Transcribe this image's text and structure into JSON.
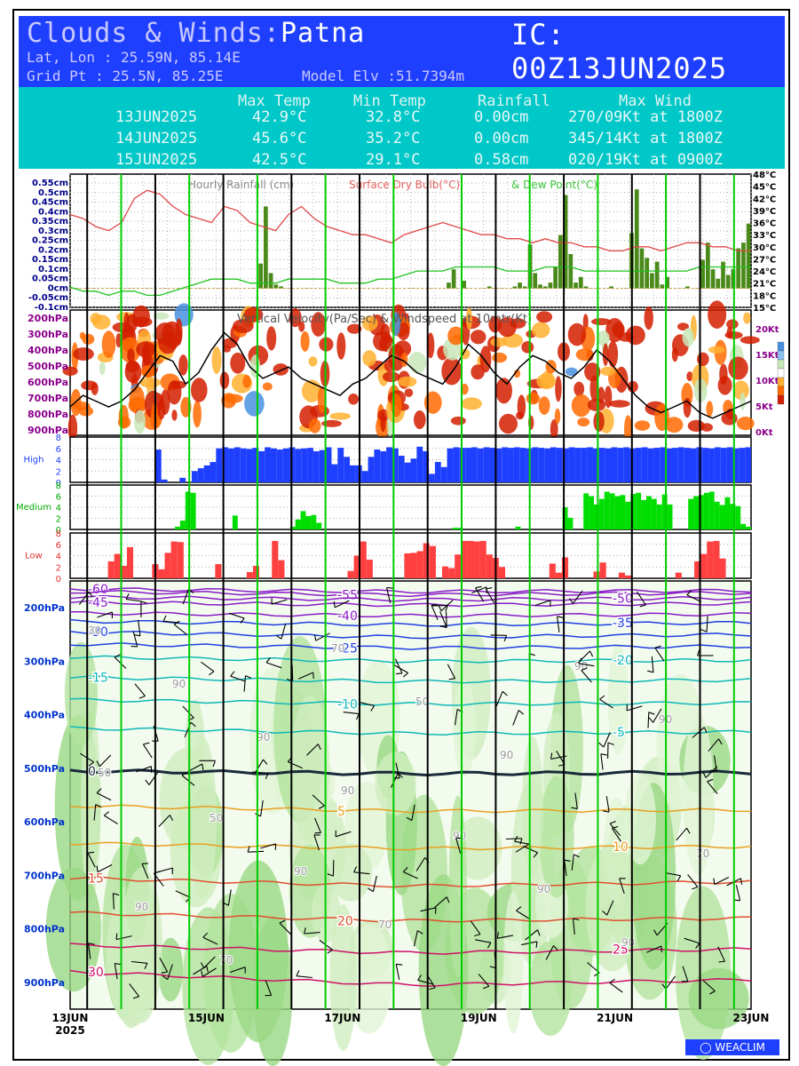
{
  "header": {
    "title_prefix": "Clouds & Winds:",
    "location": "Patna",
    "ic": "IC: 00Z13JUN2025",
    "latlon": "Lat, Lon : 25.59N, 85.14E",
    "grid": "Grid Pt  : 25.5N, 85.25E",
    "elev": "Model Elv :51.7394m"
  },
  "summary": {
    "columns": [
      "Max Temp",
      "Min Temp",
      "Rainfall",
      "Max Wind"
    ],
    "rows": [
      {
        "date": "13JUN2025",
        "max": "42.9°C",
        "min": "32.8°C",
        "rain": "0.00cm",
        "wind": "270/09Kt at 1800Z"
      },
      {
        "date": "14JUN2025",
        "max": "45.6°C",
        "min": "35.2°C",
        "rain": "0.00cm",
        "wind": "345/14Kt at 1800Z"
      },
      {
        "date": "15JUN2025",
        "max": "42.5°C",
        "min": "29.1°C",
        "rain": "0.58cm",
        "wind": "020/19Kt at 0900Z"
      }
    ]
  },
  "colors": {
    "header_blue": "#1f3fff",
    "header_cyan": "#00c8c8",
    "rain_bar": "#4a8a1a",
    "temp_line": "#e04848",
    "dew_line": "#22c422",
    "high": "#1f3fff",
    "medium": "#00dd00",
    "low": "#ff4040",
    "day_line": "#00cc00"
  },
  "chart_data": [
    {
      "type": "bar+line",
      "panel": "rain_temp",
      "legend": [
        "Hourly Rainfall (cm)",
        "Surface Dry Bulb(°C)",
        "& Dew Point(°C)"
      ],
      "left_ticks": [
        "0.55cm",
        "0.5cm",
        "0.45cm",
        "0.4cm",
        "0.35cm",
        "0.3cm",
        "0.25cm",
        "0.2cm",
        "0.15cm",
        "0.1cm",
        "0.05cm",
        "0cm",
        "-0.05cm",
        "-0.1cm"
      ],
      "right_ticks": [
        "48°C",
        "45°C",
        "42°C",
        "39°C",
        "36°C",
        "33°C",
        "30°C",
        "27°C",
        "24°C",
        "21°C",
        "18°C",
        "15°C"
      ],
      "ylim_rain": [
        -0.1,
        0.6
      ],
      "ylim_temp": [
        15,
        48
      ],
      "x_hours_step": 3,
      "rain": [
        0,
        0,
        0,
        0,
        0,
        0,
        0,
        0,
        0,
        0,
        0,
        0,
        0,
        0,
        0,
        0,
        0,
        0,
        0,
        0,
        0,
        0,
        0,
        0,
        0,
        0,
        0,
        0,
        0,
        0,
        0,
        0,
        0,
        0,
        0,
        0,
        0,
        0.13,
        0.43,
        0.08,
        0.02,
        0.01,
        0,
        0,
        0,
        0,
        0,
        0,
        0,
        0,
        0,
        0,
        0,
        0,
        0,
        0,
        0,
        0,
        0,
        0,
        0,
        0,
        0,
        0,
        0,
        0,
        0,
        0,
        0,
        0,
        0,
        0,
        0,
        0,
        0.03,
        0.1,
        0,
        0.04,
        0,
        0,
        0,
        0,
        0.01,
        0,
        0,
        0,
        0,
        0.01,
        0.03,
        0.01,
        0.23,
        0.08,
        0.02,
        0.01,
        0.03,
        0.11,
        0.28,
        0.49,
        0.18,
        0.03,
        0.06,
        0.01,
        0,
        0,
        0,
        0,
        0.01,
        0,
        0,
        0,
        0.29,
        0.52,
        0.21,
        0.16,
        0.08,
        0.14,
        0.02,
        0.06,
        0,
        0,
        0,
        0.01,
        0,
        0,
        0.15,
        0.24,
        0.1,
        0.05,
        0.14,
        0.07,
        0.1,
        0.21,
        0.24,
        0.34
      ],
      "temp": [
        38,
        37,
        35,
        34,
        36,
        42,
        44,
        43,
        40,
        38,
        37,
        36,
        40,
        39,
        36,
        35,
        34,
        38,
        40,
        37,
        35,
        34,
        33,
        33,
        32,
        31,
        33,
        34,
        35,
        36,
        35,
        34,
        33,
        33,
        32,
        32,
        31,
        32,
        31,
        31,
        30,
        30,
        29,
        29,
        30,
        30,
        29,
        30,
        31,
        31,
        30,
        30,
        29,
        29
      ],
      "dew": [
        20,
        19,
        19,
        18,
        19,
        19,
        18,
        18,
        19,
        20,
        21,
        22,
        22,
        22,
        21,
        21,
        21,
        22,
        22,
        22,
        22,
        21,
        21,
        21,
        22,
        22,
        23,
        24,
        24,
        24,
        25,
        25,
        25,
        25,
        24,
        24,
        24,
        25,
        25,
        25,
        24,
        24,
        24,
        24,
        24,
        24,
        24,
        24,
        24,
        25,
        25,
        25,
        25,
        25
      ]
    },
    {
      "type": "heatmap+line",
      "panel": "vertical_velocity",
      "title": "Vertical Velocity(Pa/Sec) & Windspeed at 10mtr(Kt)",
      "pressure_ticks": [
        "200hPa",
        "300hPa",
        "400hPa",
        "500hPa",
        "600hPa",
        "700hPa",
        "800hPa",
        "900hPa"
      ],
      "right_ticks": [
        "20Kt",
        "15Kt",
        "10Kt",
        "5Kt",
        "0Kt"
      ],
      "ylim_wind": [
        0,
        22
      ],
      "windspeed_10m": [
        5,
        7,
        6,
        5,
        6,
        8,
        11,
        14,
        13,
        9,
        11,
        15,
        18,
        16,
        12,
        10,
        11,
        12,
        10,
        9,
        8,
        7,
        9,
        10,
        12,
        14,
        13,
        11,
        10,
        9,
        12,
        16,
        14,
        11,
        9,
        12,
        14,
        13,
        11,
        10,
        12,
        15,
        13,
        10,
        7,
        5,
        4,
        5,
        6,
        4,
        3,
        4,
        5,
        6
      ]
    },
    {
      "type": "bar",
      "panel": "high_cloud",
      "label": "High",
      "yticks": [
        "8",
        "6",
        "4",
        "2",
        "0"
      ],
      "ylim": [
        0,
        8
      ],
      "values": [
        0,
        0,
        0,
        0,
        0,
        0,
        0,
        0,
        0,
        0,
        0,
        0,
        0,
        0,
        5.8,
        0.5,
        0,
        0,
        0.8,
        0,
        2.0,
        2.5,
        3.0,
        3.6,
        6.0,
        6.2,
        6.0,
        6.2,
        6.0,
        5.9,
        6.1,
        5.5,
        6.2,
        6.0,
        5.8,
        6.0,
        6.2,
        5.9,
        6.0,
        6.1,
        5.5,
        5.7,
        6.2,
        3.2,
        6.1,
        4.5,
        3.0,
        3.0,
        2.0,
        4.5,
        5.8,
        5.5,
        6.2,
        6.0,
        4.7,
        3.5,
        4.2,
        6.3,
        5.5,
        1.5,
        3.6,
        2.7,
        6.0,
        6.2,
        6.1,
        6.1,
        6.2,
        6.0,
        6.2,
        6.1,
        6.0,
        6.2,
        6.1,
        6.2,
        6.1,
        6.0,
        6.2,
        6.1,
        6.0,
        6.2,
        6.1,
        6.0,
        6.2,
        6.1,
        6.1,
        6.2,
        6.0,
        6.1,
        6.0,
        6.2,
        6.1,
        6.2,
        6.0,
        6.1,
        6.2,
        6.0,
        6.1,
        6.2,
        6.0,
        6.1,
        6.2,
        6.1,
        6.0,
        6.2,
        6.1,
        6.0,
        6.2,
        6.1,
        6.2,
        6.0,
        6.1,
        6.2
      ]
    },
    {
      "type": "bar",
      "panel": "medium_cloud",
      "label": "Medium",
      "yticks": [
        "8",
        "6",
        "4",
        "2",
        "0"
      ],
      "ylim": [
        0,
        8
      ],
      "values": [
        0,
        0,
        0,
        0,
        0,
        0,
        0,
        0,
        0,
        0,
        0,
        0,
        0,
        0,
        0,
        0,
        0,
        0,
        0,
        0,
        0.5,
        1.6,
        6.8,
        6.6,
        0,
        0,
        0,
        0,
        0,
        0,
        0,
        2.5,
        0,
        0,
        0,
        0,
        0,
        0,
        0,
        0,
        0,
        0,
        0.5,
        1.8,
        3.3,
        2.4,
        2.6,
        1.2,
        0,
        0,
        0,
        0,
        0,
        0,
        0,
        0,
        0,
        0,
        0,
        0,
        0,
        0,
        0,
        0,
        0,
        0,
        0,
        0,
        0,
        0,
        0,
        0,
        0,
        0.3,
        0.3,
        0,
        0,
        0,
        0,
        0,
        0,
        0,
        0,
        0,
        0,
        0.5,
        0,
        0,
        0,
        0,
        0,
        0,
        0,
        0,
        4.0,
        2.1,
        0,
        0,
        6.5,
        6.0,
        4.5,
        5.5,
        6.8,
        6.5,
        6.0,
        6.2,
        5.0,
        6.4,
        6.6,
        5.3,
        6.0,
        5.5,
        4.5,
        6.3,
        4.5,
        0,
        0,
        0,
        5.5,
        6.0,
        6.2,
        6.6,
        6.8,
        5.0,
        4.4,
        5.8,
        4.6,
        4.2,
        1.0,
        0.5
      ]
    },
    {
      "type": "bar",
      "panel": "low_cloud",
      "label": "Low",
      "yticks": [
        "8",
        "6",
        "4",
        "2",
        "0"
      ],
      "ylim": [
        0,
        8
      ],
      "values": [
        0,
        0,
        0,
        0,
        0,
        0,
        3.0,
        4.3,
        2.2,
        5.5,
        0,
        0,
        0,
        2.5,
        1.6,
        4.5,
        6.5,
        6.4,
        0,
        0,
        0,
        0,
        0,
        2.5,
        0,
        0,
        0,
        0,
        1.1,
        2.2,
        0,
        0,
        6.6,
        3.2,
        0,
        0,
        0,
        0,
        0,
        0,
        0,
        0,
        0,
        0,
        1.3,
        4.0,
        6.5,
        3.3,
        0,
        0,
        0,
        0,
        0,
        4.4,
        4.5,
        4.8,
        6.2,
        5.7,
        0,
        2.1,
        1.8,
        4.2,
        6.6,
        6.6,
        6.5,
        6.6,
        4.2,
        3.6,
        2.0,
        0,
        0,
        0,
        0,
        0,
        0,
        0,
        2.6,
        1.0,
        3.7,
        0,
        0,
        0,
        0,
        1.2,
        2.8,
        0,
        0,
        1.0,
        0.5,
        0,
        0,
        0,
        0,
        0,
        0,
        0,
        1.0,
        0,
        0,
        3.0,
        4.3,
        6.5,
        6.6,
        3.5,
        0,
        0,
        0,
        0
      ]
    },
    {
      "type": "contour",
      "panel": "upper_air",
      "pressure_ticks": [
        "200hPa",
        "300hPa",
        "400hPa",
        "500hPa",
        "600hPa",
        "700hPa",
        "800hPa",
        "900hPa"
      ],
      "x_ticks": [
        "13JUN",
        "15JUN",
        "17JUN",
        "19JUN",
        "21JUN",
        "23JUN"
      ],
      "x_sub": "2025",
      "isotherms": [
        {
          "value": -60,
          "levels_hpa": [
            165,
            170,
            168
          ]
        },
        {
          "value": -55,
          "levels_hpa": [
            170,
            176,
            172
          ]
        },
        {
          "value": -50,
          "levels_hpa": [
            180,
            185,
            182
          ]
        },
        {
          "value": -45,
          "levels_hpa": [
            190,
            195,
            192
          ]
        },
        {
          "value": -40,
          "levels_hpa": [
            210,
            215,
            212
          ]
        },
        {
          "value": -35,
          "levels_hpa": [
            225,
            232,
            228
          ]
        },
        {
          "value": -30,
          "levels_hpa": [
            245,
            255,
            250
          ]
        },
        {
          "value": -25,
          "levels_hpa": [
            268,
            275,
            272
          ]
        },
        {
          "value": -20,
          "levels_hpa": [
            292,
            300,
            298
          ]
        },
        {
          "value": -15,
          "levels_hpa": [
            330,
            338,
            335
          ]
        },
        {
          "value": -10,
          "levels_hpa": [
            372,
            380,
            378
          ]
        },
        {
          "value": -5,
          "levels_hpa": [
            425,
            435,
            432
          ]
        },
        {
          "value": 0,
          "levels_hpa": [
            505,
            510,
            508
          ]
        },
        {
          "value": 5,
          "levels_hpa": [
            570,
            580,
            578
          ]
        },
        {
          "value": 10,
          "levels_hpa": [
            640,
            650,
            646
          ]
        },
        {
          "value": 15,
          "levels_hpa": [
            705,
            720,
            712
          ]
        },
        {
          "value": 20,
          "levels_hpa": [
            770,
            785,
            780
          ]
        },
        {
          "value": 25,
          "levels_hpa": [
            830,
            845,
            838
          ]
        },
        {
          "value": 30,
          "levels_hpa": [
            880,
            905,
            895
          ]
        }
      ],
      "rh_labels": [
        "30",
        "50",
        "70",
        "90",
        "90",
        "70",
        "90",
        "90",
        "50",
        "90",
        "90",
        "90",
        "90",
        "70",
        "90",
        "90",
        "50",
        "70",
        "90"
      ]
    }
  ],
  "footer": {
    "brand": "WEACLIM"
  }
}
